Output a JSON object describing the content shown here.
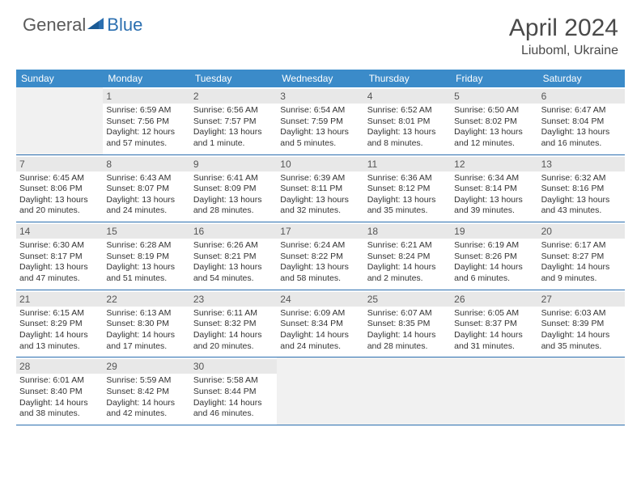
{
  "logo": {
    "word1": "General",
    "word2": "Blue"
  },
  "title": "April 2024",
  "location": "Liuboml, Ukraine",
  "colors": {
    "header_bg": "#3b8bc9",
    "header_text": "#ffffff",
    "border": "#2b6fb0",
    "daynum_bg": "#e8e8e8",
    "empty_bg": "#f1f1f1",
    "text": "#333333",
    "logo_gray": "#5a5a5a",
    "logo_blue": "#2b6fb0"
  },
  "day_names": [
    "Sunday",
    "Monday",
    "Tuesday",
    "Wednesday",
    "Thursday",
    "Friday",
    "Saturday"
  ],
  "weeks": [
    [
      {
        "n": "",
        "sr": "",
        "ss": "",
        "d1": "",
        "d2": "",
        "empty": true
      },
      {
        "n": "1",
        "sr": "Sunrise: 6:59 AM",
        "ss": "Sunset: 7:56 PM",
        "d1": "Daylight: 12 hours",
        "d2": "and 57 minutes."
      },
      {
        "n": "2",
        "sr": "Sunrise: 6:56 AM",
        "ss": "Sunset: 7:57 PM",
        "d1": "Daylight: 13 hours",
        "d2": "and 1 minute."
      },
      {
        "n": "3",
        "sr": "Sunrise: 6:54 AM",
        "ss": "Sunset: 7:59 PM",
        "d1": "Daylight: 13 hours",
        "d2": "and 5 minutes."
      },
      {
        "n": "4",
        "sr": "Sunrise: 6:52 AM",
        "ss": "Sunset: 8:01 PM",
        "d1": "Daylight: 13 hours",
        "d2": "and 8 minutes."
      },
      {
        "n": "5",
        "sr": "Sunrise: 6:50 AM",
        "ss": "Sunset: 8:02 PM",
        "d1": "Daylight: 13 hours",
        "d2": "and 12 minutes."
      },
      {
        "n": "6",
        "sr": "Sunrise: 6:47 AM",
        "ss": "Sunset: 8:04 PM",
        "d1": "Daylight: 13 hours",
        "d2": "and 16 minutes."
      }
    ],
    [
      {
        "n": "7",
        "sr": "Sunrise: 6:45 AM",
        "ss": "Sunset: 8:06 PM",
        "d1": "Daylight: 13 hours",
        "d2": "and 20 minutes."
      },
      {
        "n": "8",
        "sr": "Sunrise: 6:43 AM",
        "ss": "Sunset: 8:07 PM",
        "d1": "Daylight: 13 hours",
        "d2": "and 24 minutes."
      },
      {
        "n": "9",
        "sr": "Sunrise: 6:41 AM",
        "ss": "Sunset: 8:09 PM",
        "d1": "Daylight: 13 hours",
        "d2": "and 28 minutes."
      },
      {
        "n": "10",
        "sr": "Sunrise: 6:39 AM",
        "ss": "Sunset: 8:11 PM",
        "d1": "Daylight: 13 hours",
        "d2": "and 32 minutes."
      },
      {
        "n": "11",
        "sr": "Sunrise: 6:36 AM",
        "ss": "Sunset: 8:12 PM",
        "d1": "Daylight: 13 hours",
        "d2": "and 35 minutes."
      },
      {
        "n": "12",
        "sr": "Sunrise: 6:34 AM",
        "ss": "Sunset: 8:14 PM",
        "d1": "Daylight: 13 hours",
        "d2": "and 39 minutes."
      },
      {
        "n": "13",
        "sr": "Sunrise: 6:32 AM",
        "ss": "Sunset: 8:16 PM",
        "d1": "Daylight: 13 hours",
        "d2": "and 43 minutes."
      }
    ],
    [
      {
        "n": "14",
        "sr": "Sunrise: 6:30 AM",
        "ss": "Sunset: 8:17 PM",
        "d1": "Daylight: 13 hours",
        "d2": "and 47 minutes."
      },
      {
        "n": "15",
        "sr": "Sunrise: 6:28 AM",
        "ss": "Sunset: 8:19 PM",
        "d1": "Daylight: 13 hours",
        "d2": "and 51 minutes."
      },
      {
        "n": "16",
        "sr": "Sunrise: 6:26 AM",
        "ss": "Sunset: 8:21 PM",
        "d1": "Daylight: 13 hours",
        "d2": "and 54 minutes."
      },
      {
        "n": "17",
        "sr": "Sunrise: 6:24 AM",
        "ss": "Sunset: 8:22 PM",
        "d1": "Daylight: 13 hours",
        "d2": "and 58 minutes."
      },
      {
        "n": "18",
        "sr": "Sunrise: 6:21 AM",
        "ss": "Sunset: 8:24 PM",
        "d1": "Daylight: 14 hours",
        "d2": "and 2 minutes."
      },
      {
        "n": "19",
        "sr": "Sunrise: 6:19 AM",
        "ss": "Sunset: 8:26 PM",
        "d1": "Daylight: 14 hours",
        "d2": "and 6 minutes."
      },
      {
        "n": "20",
        "sr": "Sunrise: 6:17 AM",
        "ss": "Sunset: 8:27 PM",
        "d1": "Daylight: 14 hours",
        "d2": "and 9 minutes."
      }
    ],
    [
      {
        "n": "21",
        "sr": "Sunrise: 6:15 AM",
        "ss": "Sunset: 8:29 PM",
        "d1": "Daylight: 14 hours",
        "d2": "and 13 minutes."
      },
      {
        "n": "22",
        "sr": "Sunrise: 6:13 AM",
        "ss": "Sunset: 8:30 PM",
        "d1": "Daylight: 14 hours",
        "d2": "and 17 minutes."
      },
      {
        "n": "23",
        "sr": "Sunrise: 6:11 AM",
        "ss": "Sunset: 8:32 PM",
        "d1": "Daylight: 14 hours",
        "d2": "and 20 minutes."
      },
      {
        "n": "24",
        "sr": "Sunrise: 6:09 AM",
        "ss": "Sunset: 8:34 PM",
        "d1": "Daylight: 14 hours",
        "d2": "and 24 minutes."
      },
      {
        "n": "25",
        "sr": "Sunrise: 6:07 AM",
        "ss": "Sunset: 8:35 PM",
        "d1": "Daylight: 14 hours",
        "d2": "and 28 minutes."
      },
      {
        "n": "26",
        "sr": "Sunrise: 6:05 AM",
        "ss": "Sunset: 8:37 PM",
        "d1": "Daylight: 14 hours",
        "d2": "and 31 minutes."
      },
      {
        "n": "27",
        "sr": "Sunrise: 6:03 AM",
        "ss": "Sunset: 8:39 PM",
        "d1": "Daylight: 14 hours",
        "d2": "and 35 minutes."
      }
    ],
    [
      {
        "n": "28",
        "sr": "Sunrise: 6:01 AM",
        "ss": "Sunset: 8:40 PM",
        "d1": "Daylight: 14 hours",
        "d2": "and 38 minutes."
      },
      {
        "n": "29",
        "sr": "Sunrise: 5:59 AM",
        "ss": "Sunset: 8:42 PM",
        "d1": "Daylight: 14 hours",
        "d2": "and 42 minutes."
      },
      {
        "n": "30",
        "sr": "Sunrise: 5:58 AM",
        "ss": "Sunset: 8:44 PM",
        "d1": "Daylight: 14 hours",
        "d2": "and 46 minutes."
      },
      {
        "n": "",
        "sr": "",
        "ss": "",
        "d1": "",
        "d2": "",
        "empty": true
      },
      {
        "n": "",
        "sr": "",
        "ss": "",
        "d1": "",
        "d2": "",
        "empty": true
      },
      {
        "n": "",
        "sr": "",
        "ss": "",
        "d1": "",
        "d2": "",
        "empty": true
      },
      {
        "n": "",
        "sr": "",
        "ss": "",
        "d1": "",
        "d2": "",
        "empty": true
      }
    ]
  ]
}
